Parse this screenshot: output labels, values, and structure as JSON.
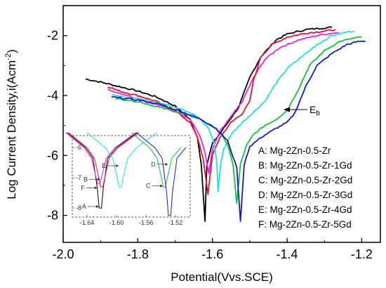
{
  "chart_data": {
    "type": "line",
    "xlabel": "Potential(Vvs.SCE)",
    "ylabel": "Log Current Density,i(Acm",
    "ylabel_sup": "-2",
    "ylabel_close": ")",
    "xlim": [
      -2.0,
      -1.15
    ],
    "ylim": [
      -8.9,
      -1.0
    ],
    "xticks": [
      -2.0,
      -1.8,
      -1.6,
      -1.4,
      -1.2
    ],
    "xtick_labels": [
      "-2.0",
      "-1.8",
      "-1.6",
      "-1.4",
      "-1.2"
    ],
    "yticks": [
      -8,
      -6,
      -4,
      -2
    ],
    "ytick_labels": [
      "-8",
      "-6",
      "-4",
      "-2"
    ],
    "grid": false,
    "legend_placement": "bottom-right",
    "series": [
      {
        "name": "A: Mg-2Zn-0.5-Zr",
        "color": "#000000",
        "ecorr": -1.62,
        "icorr": -8.2,
        "cathodic": [
          [
            -1.94,
            -3.45
          ],
          [
            -1.9,
            -3.55
          ],
          [
            -1.85,
            -3.7
          ],
          [
            -1.8,
            -3.85
          ],
          [
            -1.75,
            -4.05
          ],
          [
            -1.7,
            -4.35
          ],
          [
            -1.66,
            -4.8
          ],
          [
            -1.64,
            -5.4
          ],
          [
            -1.63,
            -6.3
          ]
        ],
        "anodic": [
          [
            -1.615,
            -6.3
          ],
          [
            -1.6,
            -5.6
          ],
          [
            -1.57,
            -5.1
          ],
          [
            -1.53,
            -4.4
          ],
          [
            -1.5,
            -3.4
          ],
          [
            -1.47,
            -2.7
          ],
          [
            -1.43,
            -2.15
          ],
          [
            -1.4,
            -1.95
          ],
          [
            -1.35,
            -1.8
          ],
          [
            -1.28,
            -1.72
          ]
        ]
      },
      {
        "name": "B: Mg-2Zn-0.5-Zr-1Gd",
        "color": "#e8102e",
        "ecorr": -1.612,
        "icorr": -7.3,
        "cathodic": [
          [
            -1.88,
            -3.7
          ],
          [
            -1.85,
            -3.85
          ],
          [
            -1.8,
            -4.0
          ],
          [
            -1.75,
            -4.2
          ],
          [
            -1.7,
            -4.5
          ],
          [
            -1.66,
            -4.9
          ],
          [
            -1.64,
            -5.4
          ],
          [
            -1.625,
            -6.1
          ]
        ],
        "anodic": [
          [
            -1.6,
            -6.0
          ],
          [
            -1.58,
            -5.4
          ],
          [
            -1.55,
            -4.9
          ],
          [
            -1.52,
            -4.6
          ],
          [
            -1.5,
            -4.2
          ],
          [
            -1.49,
            -3.5
          ],
          [
            -1.47,
            -2.7
          ],
          [
            -1.44,
            -2.3
          ],
          [
            -1.4,
            -2.05
          ],
          [
            -1.35,
            -1.92
          ],
          [
            -1.3,
            -1.85
          ],
          [
            -1.27,
            -1.8
          ]
        ]
      },
      {
        "name": "C: Mg-2Zn-0.5-Zr-2Gd",
        "color": "#12c43a",
        "ecorr": -1.535,
        "icorr": -7.6,
        "cathodic": [
          [
            -1.86,
            -4.1
          ],
          [
            -1.8,
            -4.2
          ],
          [
            -1.74,
            -4.4
          ],
          [
            -1.68,
            -4.6
          ],
          [
            -1.63,
            -4.8
          ],
          [
            -1.59,
            -5.1
          ],
          [
            -1.56,
            -5.6
          ],
          [
            -1.545,
            -6.3
          ]
        ],
        "anodic": [
          [
            -1.525,
            -6.3
          ],
          [
            -1.51,
            -5.7
          ],
          [
            -1.49,
            -5.3
          ],
          [
            -1.46,
            -5.0
          ],
          [
            -1.43,
            -4.8
          ],
          [
            -1.4,
            -4.5
          ],
          [
            -1.37,
            -3.8
          ],
          [
            -1.34,
            -3.0
          ],
          [
            -1.3,
            -2.5
          ],
          [
            -1.26,
            -2.2
          ],
          [
            -1.22,
            -2.08
          ],
          [
            -1.2,
            -2.05
          ]
        ]
      },
      {
        "name": "D: Mg-2Zn-0.5-Zr-3Gd",
        "color": "#1818c8",
        "ecorr": -1.525,
        "icorr": -8.2,
        "cathodic": [
          [
            -1.87,
            -4.05
          ],
          [
            -1.8,
            -4.15
          ],
          [
            -1.74,
            -4.3
          ],
          [
            -1.68,
            -4.55
          ],
          [
            -1.63,
            -4.8
          ],
          [
            -1.59,
            -5.1
          ],
          [
            -1.56,
            -5.5
          ],
          [
            -1.535,
            -6.4
          ]
        ],
        "anodic": [
          [
            -1.515,
            -6.3
          ],
          [
            -1.5,
            -5.7
          ],
          [
            -1.47,
            -5.4
          ],
          [
            -1.43,
            -5.1
          ],
          [
            -1.4,
            -4.9
          ],
          [
            -1.38,
            -4.6
          ],
          [
            -1.35,
            -3.7
          ],
          [
            -1.32,
            -3.0
          ],
          [
            -1.28,
            -2.6
          ],
          [
            -1.24,
            -2.3
          ],
          [
            -1.21,
            -2.2
          ],
          [
            -1.19,
            -2.18
          ]
        ]
      },
      {
        "name": "E: Mg-2Zn-0.5-Zr-4Gd",
        "color": "#1ee0e0",
        "ecorr": -1.585,
        "icorr": -7.2,
        "cathodic": [
          [
            -1.87,
            -4.0
          ],
          [
            -1.8,
            -4.1
          ],
          [
            -1.74,
            -4.25
          ],
          [
            -1.68,
            -4.45
          ],
          [
            -1.64,
            -4.7
          ],
          [
            -1.61,
            -5.1
          ],
          [
            -1.595,
            -5.6
          ],
          [
            -1.588,
            -6.3
          ]
        ],
        "anodic": [
          [
            -1.578,
            -6.3
          ],
          [
            -1.57,
            -5.8
          ],
          [
            -1.55,
            -5.3
          ],
          [
            -1.52,
            -4.9
          ],
          [
            -1.49,
            -4.55
          ],
          [
            -1.46,
            -4.2
          ],
          [
            -1.43,
            -3.6
          ],
          [
            -1.4,
            -3.1
          ],
          [
            -1.36,
            -2.7
          ],
          [
            -1.32,
            -2.3
          ],
          [
            -1.28,
            -2.0
          ],
          [
            -1.24,
            -1.88
          ],
          [
            -1.22,
            -1.85
          ]
        ]
      },
      {
        "name": "F: Mg-2Zn-0.5-Zr-5Gd",
        "color": "#ee20ee",
        "ecorr": -1.61,
        "icorr": -6.6,
        "cathodic": [
          [
            -1.88,
            -3.8
          ],
          [
            -1.84,
            -3.95
          ],
          [
            -1.8,
            -4.1
          ],
          [
            -1.75,
            -4.3
          ],
          [
            -1.7,
            -4.5
          ],
          [
            -1.66,
            -4.8
          ],
          [
            -1.635,
            -5.3
          ],
          [
            -1.62,
            -5.9
          ]
        ],
        "anodic": [
          [
            -1.6,
            -5.8
          ],
          [
            -1.58,
            -5.2
          ],
          [
            -1.55,
            -4.7
          ],
          [
            -1.52,
            -4.2
          ],
          [
            -1.49,
            -3.4
          ],
          [
            -1.46,
            -2.8
          ],
          [
            -1.42,
            -2.4
          ],
          [
            -1.37,
            -2.15
          ],
          [
            -1.32,
            -2.0
          ],
          [
            -1.28,
            -1.92
          ],
          [
            -1.26,
            -1.9
          ]
        ]
      }
    ],
    "annotations": [
      {
        "text": "E",
        "subscript": "b",
        "at_x": -1.385,
        "at_y": -4.5
      }
    ],
    "inset": {
      "xlim": [
        -1.66,
        -1.5
      ],
      "ylim": [
        -8.3,
        -5.6
      ],
      "xticks": [
        -1.64,
        -1.6,
        -1.56,
        -1.52
      ],
      "xtick_labels": [
        "-1.64",
        "-1.60",
        "-1.56",
        "-1.52"
      ],
      "yticks": [
        -6,
        -7,
        -8
      ],
      "ytick_labels": [
        "-6",
        "-7",
        "-8"
      ],
      "curves": [
        {
          "color": "#000000",
          "ecorr": -1.622,
          "min": -8.0
        },
        {
          "color": "#e8102e",
          "ecorr": -1.62,
          "min": -7.3
        },
        {
          "color": "#12c43a",
          "ecorr": -1.535,
          "min": -7.3
        },
        {
          "color": "#1818c8",
          "ecorr": -1.528,
          "min": -8.25
        },
        {
          "color": "#1ee0e0",
          "ecorr": -1.595,
          "min": -7.3
        },
        {
          "color": "#ee20ee",
          "ecorr": -1.624,
          "min": -7.2
        }
      ],
      "labels": [
        {
          "text": "A",
          "curve": 0,
          "y": -7.95
        },
        {
          "text": "B",
          "curve": 1,
          "y": -7.05
        },
        {
          "text": "F",
          "curve": 5,
          "y": -7.33
        },
        {
          "text": "E",
          "curve": 4,
          "y": -6.6
        },
        {
          "text": "D",
          "curve": 3,
          "y": -6.55
        },
        {
          "text": "C",
          "curve": 2,
          "y": -7.27
        }
      ]
    }
  }
}
